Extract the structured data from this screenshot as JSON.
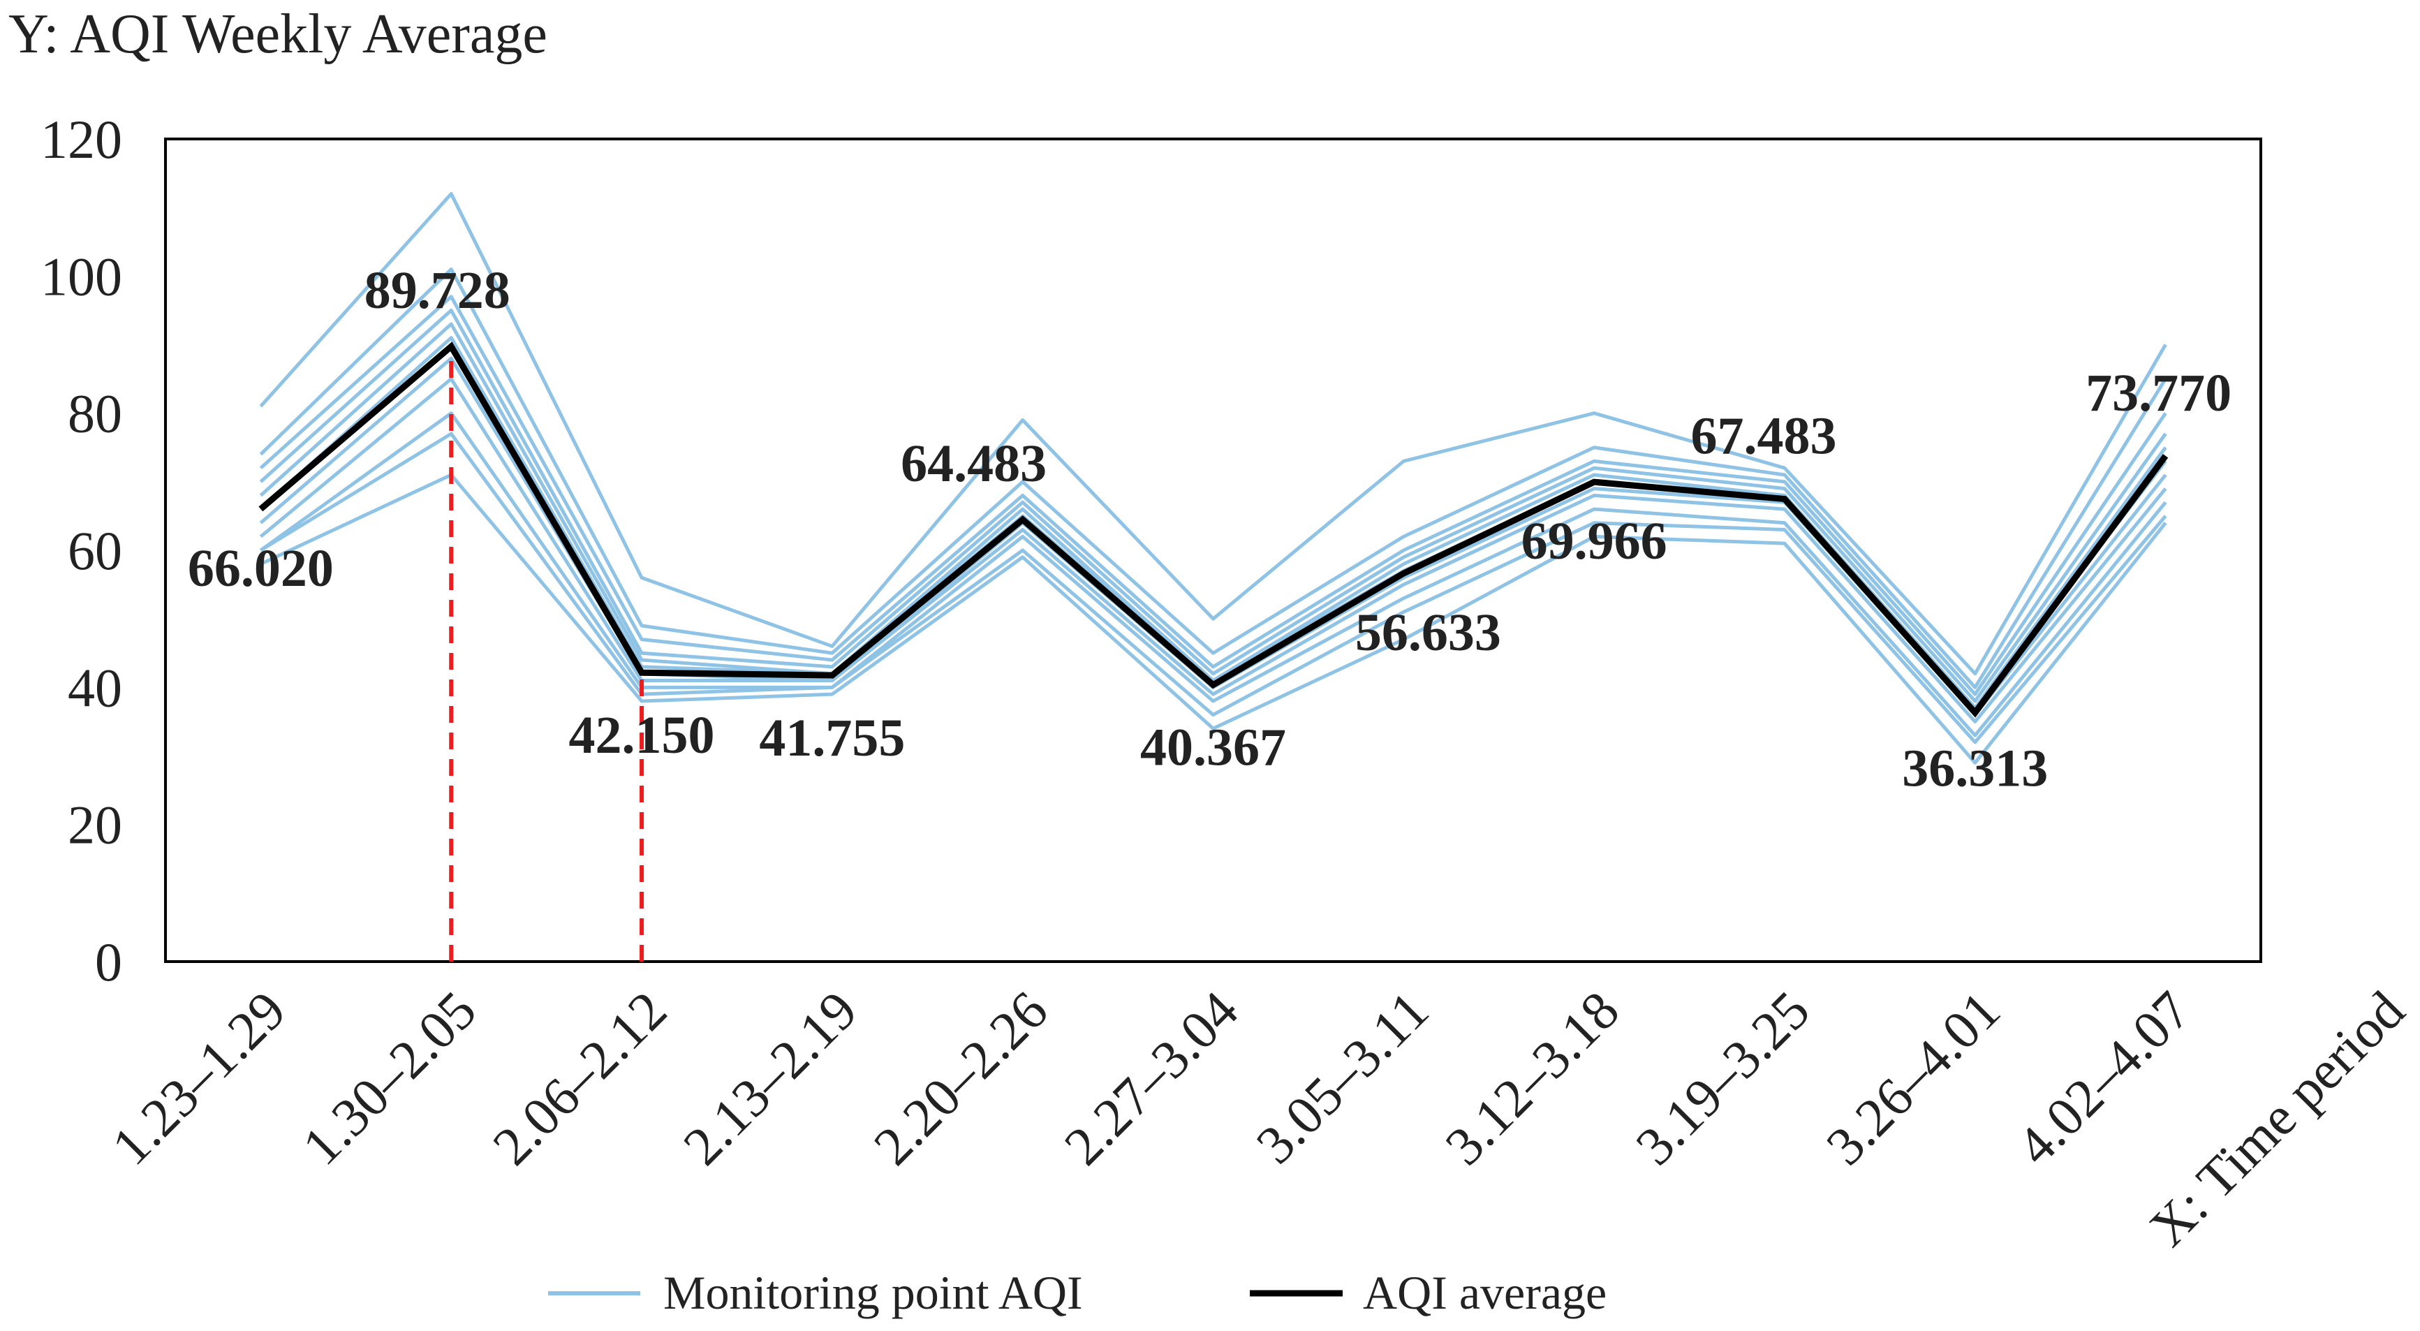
{
  "chart_data": {
    "type": "line",
    "y_axis_title": "Y: AQI Weekly Average",
    "x_axis_title": "X: Time period",
    "categories": [
      "1.23–1.29",
      "1.30–2.05",
      "2.06–2.12",
      "2.13–2.19",
      "2.20–2.26",
      "2.27–3.04",
      "3.05–3.11",
      "3.12–3.18",
      "3.19–3.25",
      "3.26–4.01",
      "4.02–4.07"
    ],
    "monitoring_points": {
      "name": "Monitoring point AQI",
      "color": "#8fc3e6",
      "lines": [
        [
          81,
          112,
          56,
          46,
          79,
          50,
          73,
          80,
          72,
          42,
          90
        ],
        [
          74,
          101,
          49,
          45,
          70,
          45,
          62,
          75,
          71,
          40,
          85
        ],
        [
          72,
          97,
          47,
          44,
          68,
          43,
          60,
          73,
          70,
          39,
          80
        ],
        [
          70,
          95,
          45,
          43,
          67,
          42,
          59,
          72,
          69,
          38,
          77
        ],
        [
          68,
          93,
          44,
          42,
          66,
          41,
          58,
          71,
          68,
          37,
          75
        ],
        [
          66,
          91,
          43,
          42,
          65,
          41,
          57,
          70,
          68,
          37,
          73
        ],
        [
          64,
          88,
          42,
          41,
          64,
          40,
          56,
          69,
          67,
          36,
          71
        ],
        [
          62,
          85,
          41,
          41,
          63,
          39,
          55,
          68,
          66,
          35,
          69
        ],
        [
          60,
          80,
          40,
          40,
          62,
          38,
          53,
          66,
          64,
          33,
          67
        ],
        [
          60,
          77,
          39,
          40,
          60,
          36,
          51,
          64,
          63,
          32,
          65
        ],
        [
          58,
          71,
          38,
          39,
          59,
          34,
          47,
          62,
          61,
          29,
          64
        ]
      ]
    },
    "series": [
      {
        "name": "AQI average",
        "color": "#000000",
        "values": [
          66.02,
          89.728,
          42.15,
          41.755,
          64.483,
          40.367,
          56.633,
          69.966,
          67.483,
          36.313,
          73.77
        ],
        "value_labels": [
          "66.020",
          "89.728",
          "42.150",
          "41.755",
          "64.483",
          "40.367",
          "56.633",
          "69.966",
          "67.483",
          "36.313",
          "73.770"
        ]
      }
    ],
    "drop_lines": {
      "color": "#ee1c1c",
      "categories": [
        1,
        2
      ]
    },
    "ylim": [
      0,
      120
    ],
    "yticks": [
      0,
      20,
      40,
      60,
      80,
      100,
      120
    ],
    "grid": false
  }
}
